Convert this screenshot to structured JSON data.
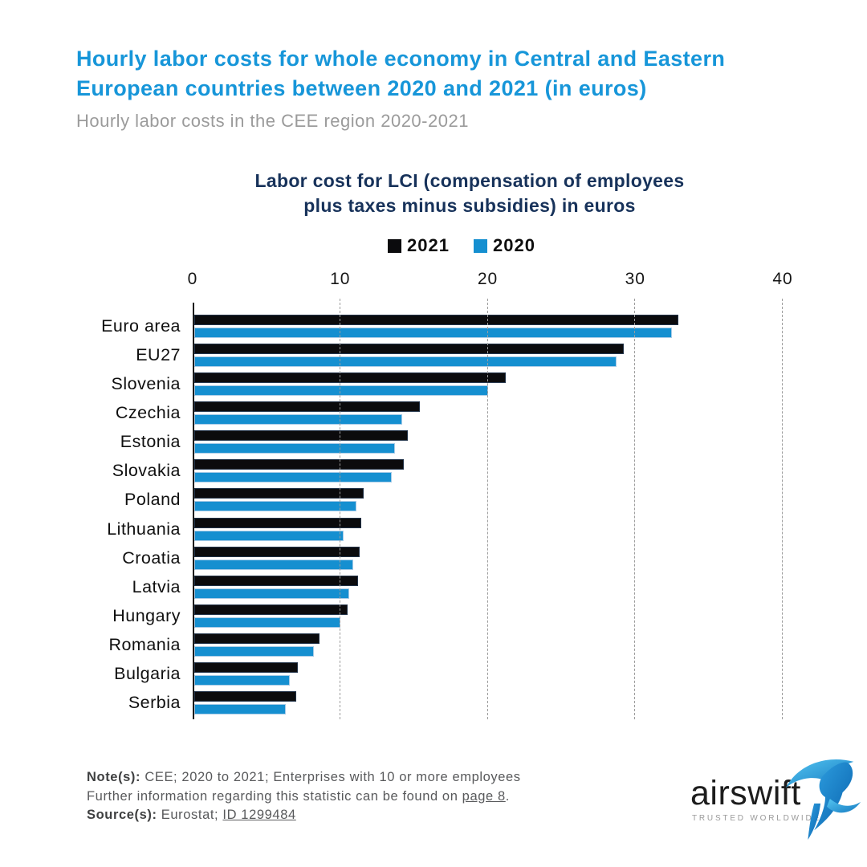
{
  "header": {
    "title_line1": "Hourly labor costs for whole economy in Central and Eastern",
    "title_line2": "European countries between 2020 and 2021 (in euros)",
    "subtitle": "Hourly labor costs in the CEE region 2020-2021"
  },
  "chart": {
    "title_line1": "Labor cost for LCI (compensation of employees",
    "title_line2": "plus taxes minus subsidies) in euros"
  },
  "chart_data": {
    "type": "bar",
    "orientation": "horizontal",
    "title": "Labor cost for LCI (compensation of employees plus taxes minus subsidies) in euros",
    "categories": [
      "Euro area",
      "EU27",
      "Slovenia",
      "Czechia",
      "Estonia",
      "Slovakia",
      "Poland",
      "Lithuania",
      "Croatia",
      "Latvia",
      "Hungary",
      "Romania",
      "Bulgaria",
      "Serbia"
    ],
    "series": [
      {
        "name": "2021",
        "color": "#0b0b0d",
        "values": [
          32.8,
          29.1,
          21.1,
          15.3,
          14.5,
          14.2,
          11.5,
          11.3,
          11.2,
          11.1,
          10.4,
          8.5,
          7.0,
          6.9
        ]
      },
      {
        "name": "2020",
        "color": "#158fd0",
        "values": [
          32.4,
          28.6,
          19.9,
          14.1,
          13.6,
          13.4,
          11.0,
          10.1,
          10.8,
          10.5,
          9.9,
          8.1,
          6.5,
          6.2
        ]
      }
    ],
    "xlabel": "",
    "ylabel": "",
    "xlim": [
      0,
      40
    ],
    "xticks": [
      0,
      10,
      20,
      30,
      40
    ],
    "grid": "dashed-vertical",
    "legend_position": "top-center",
    "axis_color": "#1b1b1b",
    "gridline_color": "#9c9c9c"
  },
  "notes": {
    "note_label": "Note(s):",
    "note_text": " CEE; 2020 to 2021; Enterprises with 10 or more employees",
    "further_text": "Further information regarding this statistic can be found on ",
    "further_link": "page 8",
    "further_suffix": ".",
    "source_label": "Source(s):",
    "source_text": " Eurostat; ",
    "source_link": "ID 1299484"
  },
  "logo": {
    "wordmark": "airswift",
    "tagline": "TRUSTED WORLDWIDE",
    "brand_blue_light": "#55c6f2",
    "brand_blue_dark": "#0a63ae"
  }
}
